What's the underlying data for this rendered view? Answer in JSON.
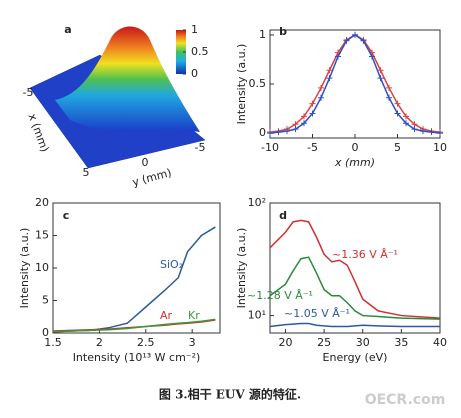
{
  "chart_data": [
    {
      "type": "surface",
      "label": "a",
      "xlabel": "x (mm)",
      "ylabel": "y (mm)",
      "xlim": [
        -5,
        5
      ],
      "xticks": [
        -5,
        5
      ],
      "ylim": [
        -5,
        5
      ],
      "yticks": [
        0,
        -5
      ],
      "clim": [
        0,
        1
      ],
      "cticks": [
        0,
        0.5,
        1
      ]
    },
    {
      "type": "line",
      "label": "b",
      "xlabel": "x (mm)",
      "ylabel": "Intensity (a.u.)",
      "marker": "+",
      "x": [
        -10,
        -9,
        -8,
        -7,
        -6,
        -5,
        -4,
        -3,
        -2,
        -1,
        0,
        1,
        2,
        3,
        4,
        5,
        6,
        7,
        8,
        9,
        10
      ],
      "series": [
        {
          "color": "#e04040",
          "values": [
            0.01,
            0.02,
            0.04,
            0.09,
            0.17,
            0.3,
            0.46,
            0.64,
            0.82,
            0.95,
            1,
            0.95,
            0.82,
            0.64,
            0.46,
            0.3,
            0.17,
            0.09,
            0.04,
            0.02,
            0.01
          ]
        },
        {
          "color": "#3050c0",
          "values": [
            0,
            0.01,
            0.02,
            0.04,
            0.1,
            0.2,
            0.36,
            0.56,
            0.78,
            0.94,
            1,
            0.94,
            0.78,
            0.56,
            0.36,
            0.2,
            0.1,
            0.04,
            0.02,
            0.01,
            0
          ]
        }
      ],
      "xlim": [
        -10,
        10
      ],
      "xticks": [
        -10,
        -5,
        0,
        5,
        10
      ],
      "ylim": [
        -0.05,
        1.05
      ],
      "yticks": [
        0,
        0.5,
        1
      ]
    },
    {
      "type": "line",
      "label": "c",
      "xlabel": "Intensity (10¹³ W cm⁻²)",
      "ylabel": "Intensity (a.u.)",
      "x": [
        1.5,
        1.7,
        1.9,
        2.1,
        2.3,
        2.5,
        2.7,
        2.85,
        2.95,
        3.1,
        3.25
      ],
      "series": [
        {
          "name": "SiO₂",
          "color": "#2a5aa0",
          "values": [
            0.2,
            0.3,
            0.4,
            0.8,
            1.5,
            4,
            6.5,
            8.5,
            12.5,
            15,
            16.3
          ]
        },
        {
          "name": "Ar",
          "color": "#d03030",
          "values": [
            0.3,
            0.4,
            0.5,
            0.6,
            0.8,
            1.0,
            1.2,
            1.4,
            1.5,
            1.7,
            2.0
          ]
        },
        {
          "name": "Kr",
          "color": "#3a9a3a",
          "values": [
            0.2,
            0.3,
            0.4,
            0.5,
            0.7,
            1.0,
            1.3,
            1.5,
            1.6,
            1.8,
            2.1
          ]
        }
      ],
      "xlim": [
        1.5,
        3.3
      ],
      "xticks": [
        1.5,
        2,
        2.5,
        3
      ],
      "ylim": [
        0,
        20
      ],
      "yticks": [
        0,
        5,
        10,
        15,
        20
      ]
    },
    {
      "type": "line",
      "label": "d",
      "xlabel": "Energy (eV)",
      "ylabel": "Intensity (a.u.)",
      "log_y": true,
      "x": [
        18,
        20,
        21,
        22,
        23,
        24,
        25,
        26,
        27,
        28,
        29,
        30,
        32,
        35,
        40
      ],
      "series": [
        {
          "name": "~1.36 V Å⁻¹",
          "color": "#d03030",
          "values": [
            40,
            55,
            68,
            70,
            68,
            50,
            35,
            30,
            31,
            28,
            20,
            14,
            11,
            10,
            9.5
          ]
        },
        {
          "name": "~1.28 V Å⁻¹",
          "color": "#2a8a3a",
          "values": [
            15,
            19,
            25,
            32,
            33,
            24,
            17,
            15,
            15,
            13,
            11,
            10,
            9.8,
            9.5,
            9.3
          ]
        },
        {
          "name": "~1.05 V Å⁻¹",
          "color": "#2a5aa0",
          "values": [
            8,
            8.3,
            8.4,
            8.5,
            8.5,
            8.2,
            8.1,
            8,
            8,
            8,
            8.1,
            8.2,
            8.1,
            8,
            8
          ]
        }
      ],
      "xlim": [
        18,
        40
      ],
      "xticks": [
        20,
        25,
        30,
        35,
        40
      ],
      "ylim": [
        7,
        100
      ],
      "yticks": [
        {
          "value": 10,
          "label": "10¹"
        },
        {
          "value": 100,
          "label": "10²"
        }
      ]
    }
  ],
  "caption": "图 3.相干 EUV 源的特征.",
  "watermark": "OECR.com"
}
